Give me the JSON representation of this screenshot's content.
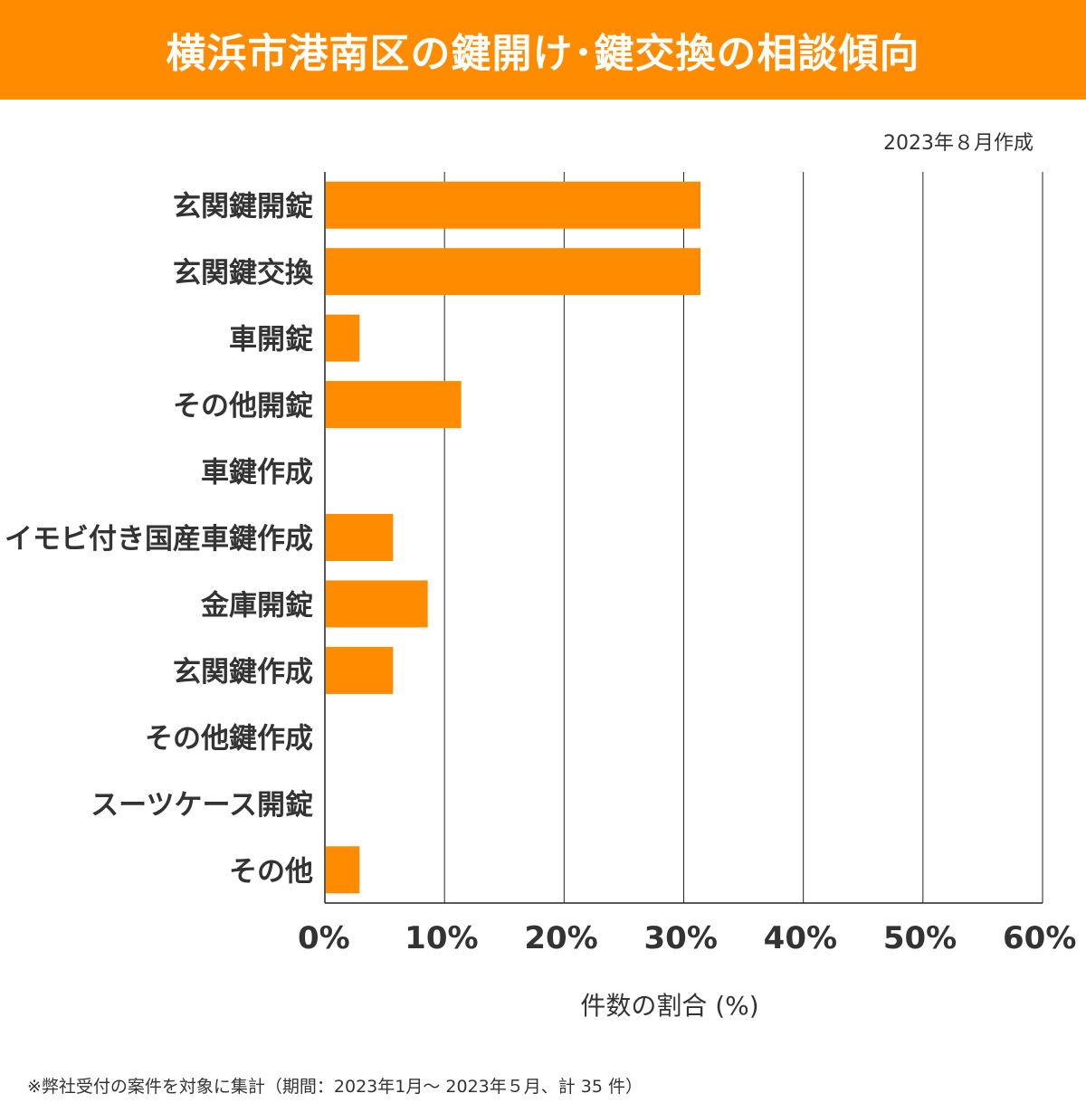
{
  "header": {
    "title": "横浜市港南区の鍵開け･鍵交換の相談傾向"
  },
  "created": "2023年８月作成",
  "footnote": "※弊社受付の案件を対象に集計（期間：2023年1月～ 2023年５月、計 35 件）",
  "chart_data": {
    "type": "bar",
    "orientation": "horizontal",
    "title": "横浜市港南区の鍵開け･鍵交換の相談傾向",
    "xlabel": "件数の割合 (%)",
    "ylabel": "",
    "xlim": [
      0,
      60
    ],
    "xticks": [
      "0%",
      "10%",
      "20%",
      "30%",
      "40%",
      "50%",
      "60%"
    ],
    "grid": true,
    "color": "#ff8c00",
    "categories": [
      "玄関鍵開錠",
      "玄関鍵交換",
      "車開錠",
      "その他開錠",
      "車鍵作成",
      "イモビ付き国産車鍵作成",
      "金庫開錠",
      "玄関鍵作成",
      "その他鍵作成",
      "スーツケース開錠",
      "その他"
    ],
    "values": [
      31.4,
      31.4,
      2.9,
      11.4,
      0,
      5.7,
      8.6,
      5.7,
      0,
      0,
      2.9
    ]
  }
}
